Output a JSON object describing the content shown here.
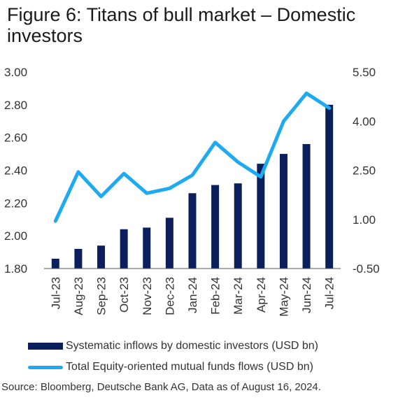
{
  "title": "Figure 6: Titans of bull market – Domestic investors",
  "source": "Source: Bloomberg, Deutsche Bank AG, Data as of August 16, 2024.",
  "colors": {
    "bars": "#0b1f5c",
    "line": "#1eaaf1",
    "axis": "#555555"
  },
  "chart_data": {
    "type": "bar",
    "categories": [
      "Jul-23",
      "Aug-23",
      "Sep-23",
      "Oct-23",
      "Nov-23",
      "Dec-23",
      "Jan-24",
      "Feb-24",
      "Mar-24",
      "Apr-24",
      "May-24",
      "Jun-24",
      "Jul-24"
    ],
    "series": [
      {
        "name": "Systematic inflows by domestic investors (USD bn)",
        "type": "bar",
        "axis": "left",
        "values": [
          1.86,
          1.92,
          1.94,
          2.04,
          2.05,
          2.11,
          2.26,
          2.31,
          2.32,
          2.44,
          2.5,
          2.56,
          2.8
        ]
      },
      {
        "name": "Total Equity-oriented mutual funds flows (USD bn)",
        "type": "line",
        "axis": "right",
        "values": [
          0.95,
          2.45,
          1.7,
          2.4,
          1.8,
          1.95,
          2.35,
          3.35,
          2.75,
          2.3,
          4.0,
          4.85,
          4.4
        ]
      }
    ],
    "left_axis": {
      "min": 1.8,
      "max": 3.0,
      "ticks": [
        "1.80",
        "2.00",
        "2.20",
        "2.40",
        "2.60",
        "2.80",
        "3.00"
      ]
    },
    "right_axis": {
      "min": -0.5,
      "max": 5.5,
      "ticks": [
        "-0.50",
        "1.00",
        "2.50",
        "4.00",
        "5.50"
      ]
    },
    "legend_position": "bottom",
    "grid": false
  }
}
